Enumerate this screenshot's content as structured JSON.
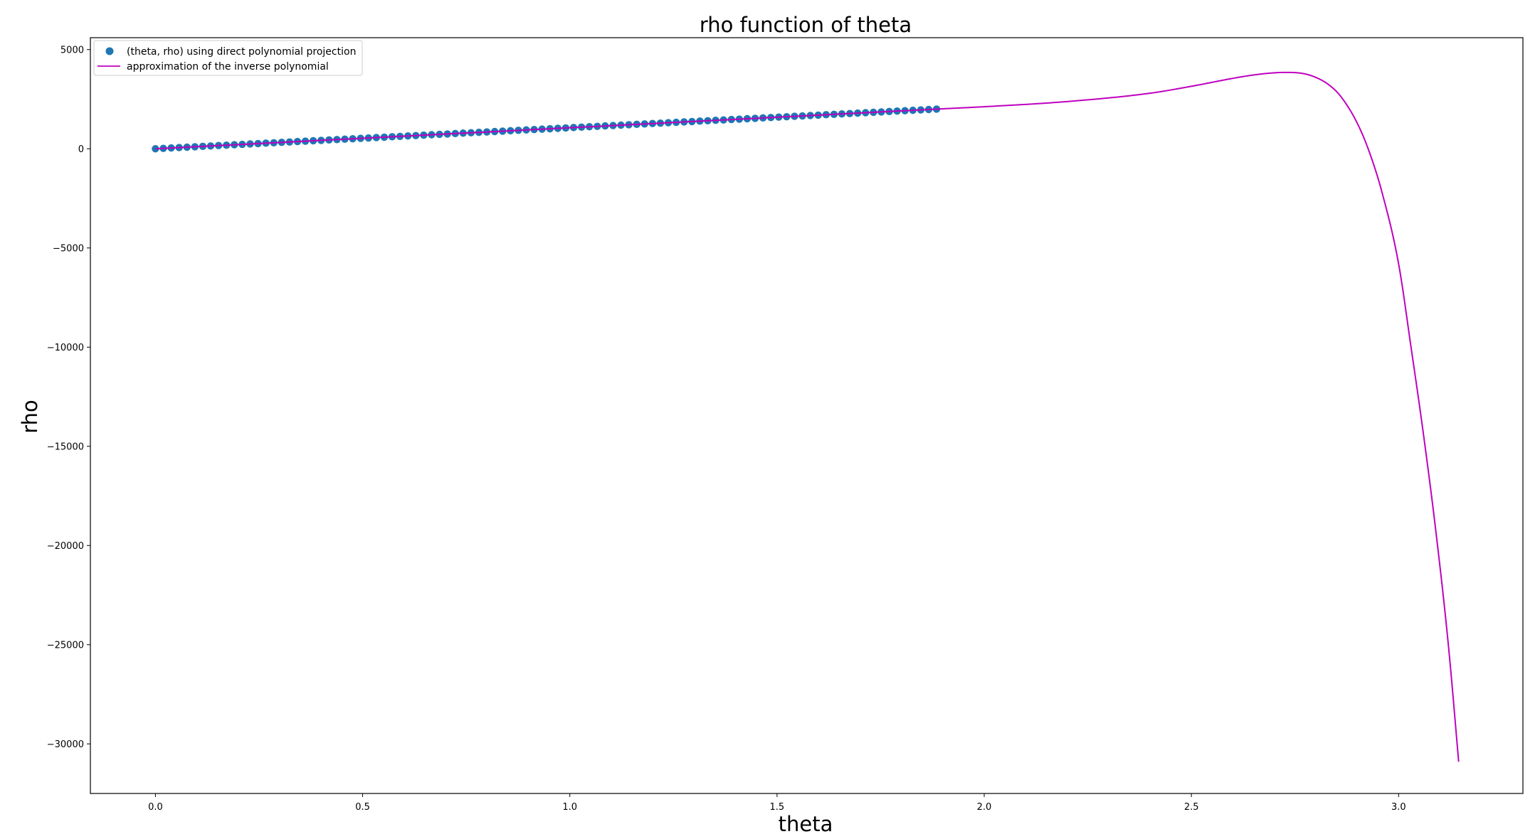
{
  "chart_data": {
    "type": "scatter",
    "title": "rho function of theta",
    "xlabel": "theta",
    "ylabel": "rho",
    "xlim": [
      -0.157,
      3.3
    ],
    "ylim": [
      -32500,
      5600
    ],
    "xticks": [
      0.0,
      0.5,
      1.0,
      1.5,
      2.0,
      2.5,
      3.0
    ],
    "xtick_labels": [
      "0.0",
      "0.5",
      "1.0",
      "1.5",
      "2.0",
      "2.5",
      "3.0"
    ],
    "yticks": [
      5000,
      0,
      -5000,
      -10000,
      -15000,
      -20000,
      -25000,
      -30000
    ],
    "ytick_labels": [
      "5000",
      "0",
      "−5000",
      "−10000",
      "−15000",
      "−20000",
      "−25000",
      "−30000"
    ],
    "grid": false,
    "legend_position": "top-left",
    "series": [
      {
        "name": "(theta, rho) using direct polynomial projection",
        "kind": "scatter",
        "color": "#1f77b4",
        "x_start": 0.0,
        "x_end": 1.885,
        "count": 100,
        "y_start": 0,
        "y_end": 2000
      },
      {
        "name": "approximation of the inverse polynomial",
        "kind": "line",
        "color": "#bf00bf",
        "x": [
          0.0,
          0.5,
          1.0,
          1.5,
          1.885,
          2.0,
          2.2,
          2.4,
          2.5,
          2.6,
          2.65,
          2.7,
          2.73,
          2.77,
          2.8,
          2.83,
          2.86,
          2.9,
          2.93,
          2.96,
          3.0,
          3.03,
          3.06,
          3.09,
          3.12,
          3.145
        ],
        "y": [
          0,
          530,
          1060,
          1590,
          2000,
          2120,
          2380,
          2800,
          3150,
          3550,
          3720,
          3830,
          3850,
          3790,
          3600,
          3250,
          2650,
          1300,
          -200,
          -2200,
          -5800,
          -10000,
          -14400,
          -19300,
          -25000,
          -30900
        ]
      }
    ]
  }
}
